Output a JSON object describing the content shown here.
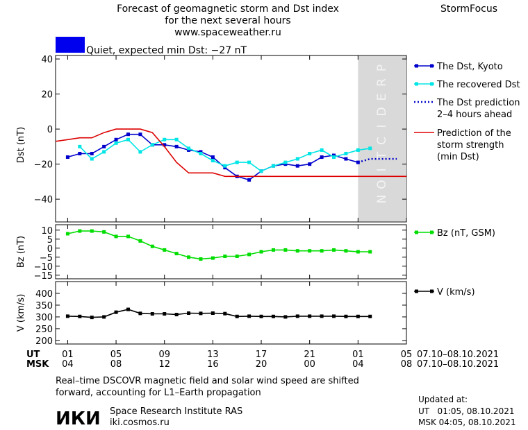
{
  "header": {
    "title_lines": [
      "Forecast of geomagnetic storm and Dst index",
      "for the next several hours",
      "www.spaceweather.ru"
    ],
    "brand": "StormFocus",
    "status_text": "Quiet, expected min Dst: −27 nT",
    "status_color": "#0000ee"
  },
  "chart_data": [
    {
      "id": "dst",
      "type": "line",
      "ylabel": "Dst (nT)",
      "ylim": [
        -53,
        42
      ],
      "yticks": [
        40,
        20,
        0,
        -20,
        -40
      ],
      "yticklabels": [
        "40",
        "20",
        "0",
        "−20",
        "−40"
      ],
      "prediction_region": {
        "x_range": [
          24,
          28
        ],
        "label": "PREDICTION",
        "color": "#d9d9d9"
      },
      "series": [
        {
          "name": "The Dst, Kyoto",
          "color": "#0000cc",
          "marker": "square",
          "style": "solid",
          "x": [
            0,
            1,
            2,
            3,
            4,
            5,
            6,
            7,
            8,
            9,
            10,
            11,
            12,
            13,
            14,
            15,
            16,
            17,
            18,
            19,
            20,
            21,
            22,
            23,
            24
          ],
          "y": [
            -16,
            -14,
            -14,
            -10,
            -6,
            -3,
            -3,
            -9,
            -9,
            -10,
            -12,
            -13,
            -16,
            -22,
            -27,
            -29,
            -24,
            -21,
            -20,
            -21,
            -20,
            -16,
            -15,
            -17,
            -19
          ]
        },
        {
          "name": "The recovered Dst",
          "color": "#00e5e5",
          "marker": "square",
          "style": "solid",
          "x": [
            1,
            2,
            3,
            4,
            5,
            6,
            7,
            8,
            9,
            10,
            11,
            12,
            13,
            14,
            15,
            16,
            17,
            18,
            19,
            20,
            21,
            22,
            23,
            24,
            25
          ],
          "y": [
            -10,
            -17,
            -13,
            -8,
            -6,
            -13,
            -9,
            -6,
            -6,
            -11,
            -14,
            -18,
            -21,
            -19,
            -19,
            -24,
            -21,
            -19,
            -17,
            -14,
            -12,
            -16,
            -14,
            -12,
            -11
          ]
        },
        {
          "name": "The Dst prediction 2–4 hours ahead",
          "legend_lines": [
            "The Dst prediction",
            "2–4 hours ahead"
          ],
          "color": "#0000cc",
          "style": "dotted",
          "x": [
            24,
            25,
            26,
            27.2
          ],
          "y": [
            -19,
            -17,
            -17,
            -17
          ]
        },
        {
          "name": "Prediction of the storm strength (min Dst)",
          "legend_lines": [
            "Prediction of the",
            "storm strength",
            "(min Dst)"
          ],
          "color": "#dd0000",
          "style": "solid",
          "x": [
            -1,
            0,
            1,
            2,
            3,
            4,
            5,
            6,
            7,
            8,
            9,
            10,
            11,
            12,
            13,
            14,
            15,
            28
          ],
          "y": [
            -7,
            -6,
            -5,
            -5,
            -2,
            0,
            0,
            0,
            -2,
            -10,
            -19,
            -25,
            -25,
            -25,
            -27,
            -27,
            -27,
            -27
          ]
        }
      ]
    },
    {
      "id": "bz",
      "type": "line",
      "ylabel": "Bz (nT)",
      "ylim": [
        -17,
        13
      ],
      "yticks": [
        10,
        5,
        0,
        -5,
        -10,
        -15
      ],
      "yticklabels": [
        "10",
        "5",
        "0",
        "−5",
        "−10",
        "−15"
      ],
      "series": [
        {
          "name": "Bz (nT, GSM)",
          "color": "#00dd00",
          "marker": "square",
          "style": "solid",
          "x": [
            0,
            1,
            2,
            3,
            4,
            5,
            6,
            7,
            8,
            9,
            10,
            11,
            12,
            13,
            14,
            15,
            16,
            17,
            18,
            19,
            20,
            21,
            22,
            23,
            24,
            25
          ],
          "y": [
            8,
            9.5,
            9.5,
            9,
            6.5,
            6.5,
            4,
            1,
            -1,
            -3,
            -5,
            -6,
            -5.5,
            -4.5,
            -4.5,
            -3.5,
            -2,
            -1,
            -1,
            -1.5,
            -1.5,
            -1.5,
            -1,
            -1.5,
            -2,
            -2
          ]
        }
      ]
    },
    {
      "id": "v",
      "type": "line",
      "ylabel": "V (km/s)",
      "ylim": [
        185,
        450
      ],
      "yticks": [
        400,
        350,
        300,
        250,
        200
      ],
      "yticklabels": [
        "400",
        "350",
        "300",
        "250",
        "200"
      ],
      "series": [
        {
          "name": "V (km/s)",
          "color": "#000000",
          "marker": "square",
          "style": "solid",
          "x": [
            0,
            1,
            2,
            3,
            4,
            5,
            6,
            7,
            8,
            9,
            10,
            11,
            12,
            13,
            14,
            15,
            16,
            17,
            18,
            19,
            20,
            21,
            22,
            23,
            24,
            25
          ],
          "y": [
            303,
            302,
            298,
            300,
            320,
            332,
            315,
            313,
            313,
            310,
            316,
            315,
            316,
            314,
            302,
            303,
            302,
            302,
            300,
            303,
            303,
            303,
            303,
            302,
            302,
            302
          ]
        }
      ]
    }
  ],
  "x_axis": {
    "x_range": [
      -1,
      28
    ],
    "tick_positions": [
      0,
      4,
      8,
      12,
      16,
      20,
      24,
      28
    ],
    "ut_label": "UT",
    "msk_label": "MSK",
    "ut_ticks": [
      "01",
      "05",
      "09",
      "13",
      "17",
      "21",
      "01",
      "05"
    ],
    "msk_ticks": [
      "04",
      "08",
      "12",
      "16",
      "20",
      "00",
      "04",
      "08"
    ],
    "date_range_ut": "07.10–08.10.2021",
    "date_range_msk": "07.10–08.10.2021"
  },
  "footer": {
    "note_lines": [
      "Real–time DSCOVR magnetic field and solar wind speed are shifted",
      "forward, accounting for L1–Earth propagation"
    ],
    "logo_text": "ИКИ",
    "institute_name": "Space Research Institute RAS",
    "institute_site": "iki.cosmos.ru",
    "updated_label": "Updated at:",
    "updated_ut": "UT   01:05, 08.10.2021",
    "updated_msk": "MSK 04:05, 08.10.2021"
  }
}
